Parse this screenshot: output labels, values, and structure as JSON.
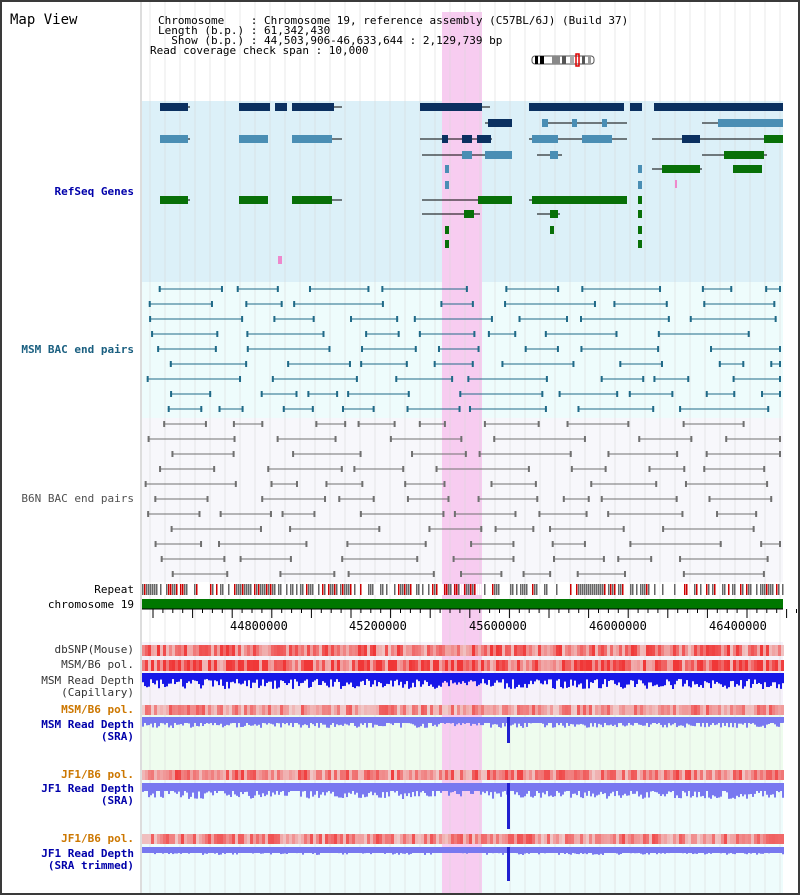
{
  "view_title": "Map View",
  "info": {
    "chromosome_line": "Chromosome    : Chromosome 19, reference assembly (C57BL/6J) (Build 37)",
    "length_line": "Length (b.p.) : 61,342,430",
    "show_line": "  Show (b.p.) : 44,503,906-46,633,644 : 2,129,739 bp",
    "coverage_line": "Read coverage check span : 10,000"
  },
  "track_labels": {
    "refseq": "RefSeq Genes",
    "msm_bac": "MSM BAC end pairs",
    "b6n_bac": "B6N BAC end pairs",
    "repeat": "Repeat",
    "chromosome": "chromosome 19",
    "dbsnp": "dbSNP(Mouse)",
    "msm_b6_pol_1": "MSM/B6 pol.",
    "msm_depth_cap_1": "MSM Read Depth",
    "msm_depth_cap_2": "(Capillary)",
    "msm_b6_pol_2": "MSM/B6 pol.",
    "msm_depth_sra_1": "MSM Read Depth",
    "msm_depth_sra_2": "(SRA)",
    "jf1_b6_pol_1": "JF1/B6 pol.",
    "jf1_depth_sra_1": "JF1 Read Depth",
    "jf1_depth_sra_2": "(SRA)",
    "jf1_b6_pol_2": "JF1/B6 pol.",
    "jf1_depth_trim_1": "JF1 Read Depth",
    "jf1_depth_trim_2": "(SRA trimmed)"
  },
  "axis_ticks": [
    "44800000",
    "45200000",
    "45600000",
    "46000000",
    "46400000"
  ],
  "colors": {
    "refseq_bg": "#dcf0f8",
    "msm_bac_bg": "#eefcfc",
    "b6n_bac_bg": "#f7f7fb",
    "highlight": "#f7ccf0",
    "gene_dark": "#0b3060",
    "gene_mid": "#4a8eb4",
    "gene_green": "#087008",
    "bac_msm": "#206a88",
    "bac_b6n": "#707070",
    "chromosome_bar": "#007700",
    "depth_capillary": "#1818e8",
    "depth_sra": "#7878f0",
    "label_blue": "#0000aa",
    "label_orange": "#cc7700",
    "label_bac": "#1a5f80"
  }
}
